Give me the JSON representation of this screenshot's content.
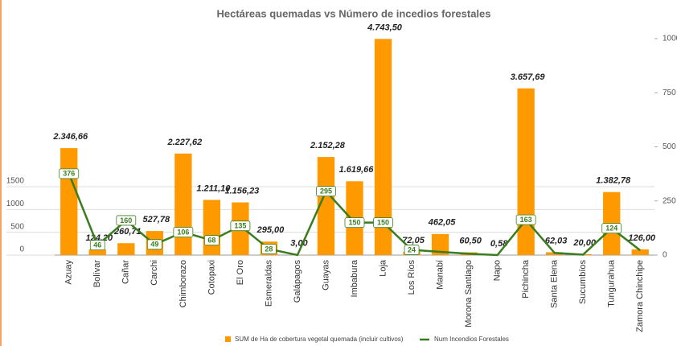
{
  "chart_data": {
    "type": "bar-line",
    "title": "Hectáreas quemadas vs Número de incedios forestales",
    "categories": [
      "Azuay",
      "Bolívar",
      "Cañar",
      "Carchi",
      "Chimborazo",
      "Cotopaxi",
      "El Oro",
      "Esmeraldas",
      "Galápagos",
      "Guayas",
      "Imbabura",
      "Loja",
      "Los Ríos",
      "Manabí",
      "Morona Santiago",
      "Napo",
      "Pichincha",
      "Santa Elena",
      "Sucumbíos",
      "Tungurahua",
      "Zamora Chinchipe"
    ],
    "series": [
      {
        "name": "SUM de Ha de cobertura vegetal quemada (incluir cultivos)",
        "color": "#ff9900",
        "type": "bar",
        "values": [
          2346.66,
          124.2,
          260.71,
          527.78,
          2227.62,
          1211.1,
          1156.23,
          295.0,
          3.0,
          2152.28,
          1619.66,
          4743.5,
          72.05,
          462.05,
          60.5,
          0.58,
          3657.69,
          62.03,
          20.0,
          1382.78,
          126.0
        ],
        "value_labels": [
          "2.346,66",
          "124,20",
          "260,71",
          "527,78",
          "2.227,62",
          "1.211,10",
          "1.156,23",
          "295,00",
          "3,00",
          "2.152,28",
          "1.619,66",
          "4.743,50",
          "72,05",
          "462,05",
          "60,50",
          "0,58",
          "3.657,69",
          "62,03",
          "20,00",
          "1.382,78",
          "126,00"
        ]
      },
      {
        "name": "Num Incendios Forestales",
        "color": "#3a7d1f",
        "type": "line",
        "axis": "y2",
        "values": [
          376,
          46,
          160,
          49,
          106,
          68,
          135,
          28,
          0,
          295,
          150,
          150,
          24,
          15,
          6,
          0,
          163,
          10,
          2,
          124,
          22
        ],
        "value_labels": [
          "376",
          "46",
          "160",
          "49",
          "106",
          "68",
          "135",
          "28",
          null,
          "295",
          "150",
          "150",
          "24",
          null,
          null,
          null,
          "163",
          null,
          null,
          "124",
          null
        ]
      }
    ],
    "ylim": [
      0,
      4750
    ],
    "yticks": [
      0,
      500,
      1000,
      1500
    ],
    "y2lim": [
      0,
      1000
    ],
    "y2ticks": [
      0,
      250,
      500,
      750,
      1000
    ],
    "legend": "bottom"
  }
}
